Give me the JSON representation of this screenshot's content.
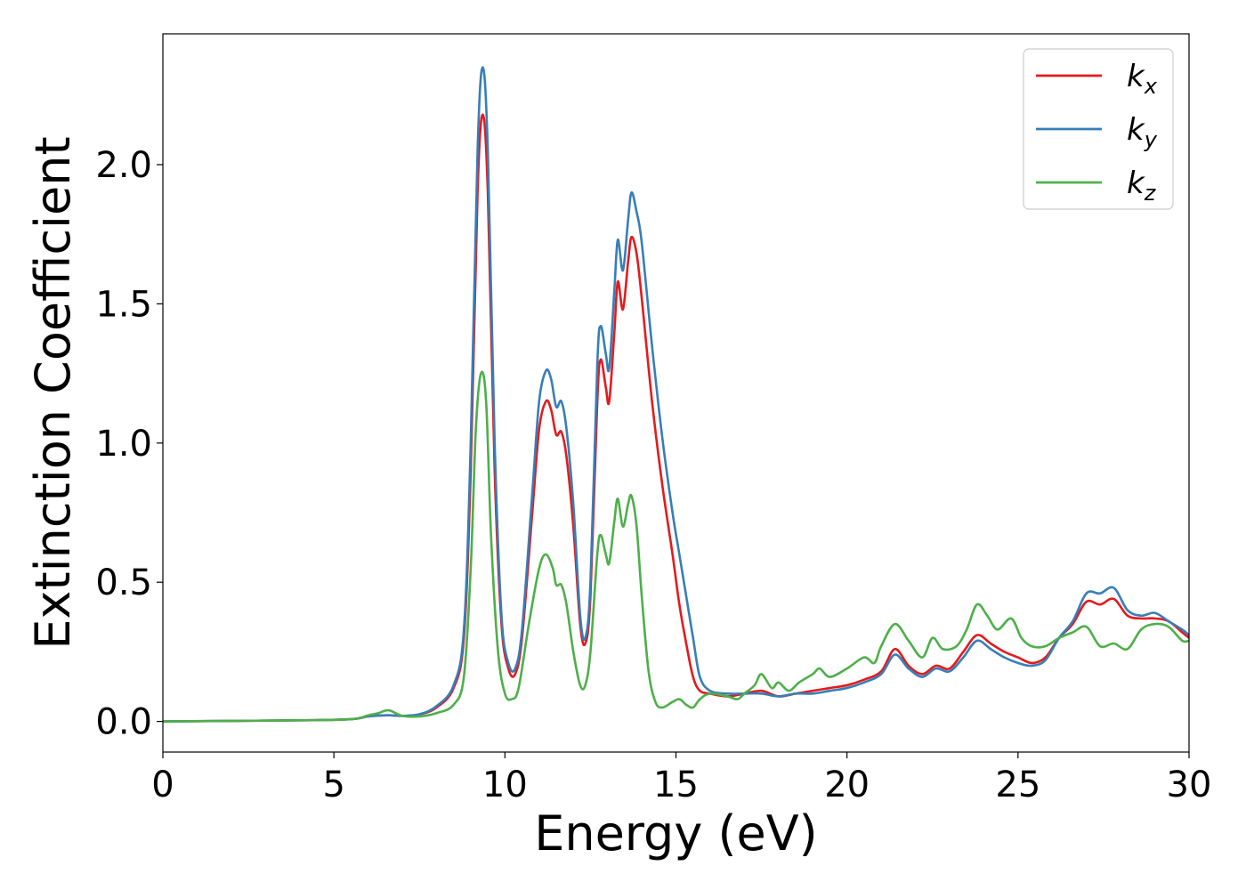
{
  "chart_data": {
    "type": "line",
    "title": "",
    "xlabel": "Energy (eV)",
    "ylabel": "Extinction Coefficient",
    "xlim": [
      0,
      30
    ],
    "ylim": [
      -0.11,
      2.47
    ],
    "xticks": [
      0,
      5,
      10,
      15,
      20,
      25,
      30
    ],
    "xtick_labels": [
      "0",
      "5",
      "10",
      "15",
      "20",
      "25",
      "30"
    ],
    "yticks": [
      0.0,
      0.5,
      1.0,
      1.5,
      2.0
    ],
    "ytick_labels": [
      "0.0",
      "0.5",
      "1.0",
      "1.5",
      "2.0"
    ],
    "grid": false,
    "legend_position": "top-right",
    "series": [
      {
        "name": "k_x",
        "legend_main": "k",
        "legend_sub": "x",
        "color": "#e41a1c",
        "points": [
          [
            0,
            0
          ],
          [
            4,
            0.004
          ],
          [
            5.5,
            0.008
          ],
          [
            6,
            0.018
          ],
          [
            6.6,
            0.022
          ],
          [
            7,
            0.02
          ],
          [
            7.5,
            0.025
          ],
          [
            8,
            0.05
          ],
          [
            8.5,
            0.12
          ],
          [
            8.8,
            0.3
          ],
          [
            9.0,
            0.9
          ],
          [
            9.2,
            1.9
          ],
          [
            9.35,
            2.18
          ],
          [
            9.5,
            1.9
          ],
          [
            9.7,
            0.9
          ],
          [
            9.9,
            0.35
          ],
          [
            10.1,
            0.19
          ],
          [
            10.3,
            0.17
          ],
          [
            10.5,
            0.3
          ],
          [
            10.8,
            0.75
          ],
          [
            11.0,
            1.05
          ],
          [
            11.2,
            1.15
          ],
          [
            11.35,
            1.12
          ],
          [
            11.5,
            1.03
          ],
          [
            11.65,
            1.04
          ],
          [
            11.8,
            0.95
          ],
          [
            12.0,
            0.7
          ],
          [
            12.2,
            0.35
          ],
          [
            12.35,
            0.28
          ],
          [
            12.5,
            0.45
          ],
          [
            12.7,
            1.15
          ],
          [
            12.8,
            1.3
          ],
          [
            12.95,
            1.2
          ],
          [
            13.05,
            1.15
          ],
          [
            13.2,
            1.4
          ],
          [
            13.3,
            1.58
          ],
          [
            13.45,
            1.48
          ],
          [
            13.6,
            1.65
          ],
          [
            13.7,
            1.74
          ],
          [
            13.85,
            1.68
          ],
          [
            14.0,
            1.52
          ],
          [
            14.3,
            1.15
          ],
          [
            14.6,
            0.85
          ],
          [
            14.9,
            0.6
          ],
          [
            15.1,
            0.42
          ],
          [
            15.3,
            0.28
          ],
          [
            15.5,
            0.16
          ],
          [
            15.7,
            0.11
          ],
          [
            16.0,
            0.1
          ],
          [
            16.5,
            0.09
          ],
          [
            17.0,
            0.1
          ],
          [
            17.5,
            0.11
          ],
          [
            18.0,
            0.09
          ],
          [
            18.5,
            0.1
          ],
          [
            19.0,
            0.11
          ],
          [
            19.5,
            0.12
          ],
          [
            20.0,
            0.13
          ],
          [
            20.5,
            0.15
          ],
          [
            21.0,
            0.18
          ],
          [
            21.4,
            0.26
          ],
          [
            21.8,
            0.2
          ],
          [
            22.2,
            0.17
          ],
          [
            22.6,
            0.2
          ],
          [
            23.0,
            0.19
          ],
          [
            23.4,
            0.25
          ],
          [
            23.8,
            0.31
          ],
          [
            24.2,
            0.28
          ],
          [
            24.6,
            0.25
          ],
          [
            25.0,
            0.23
          ],
          [
            25.4,
            0.21
          ],
          [
            25.8,
            0.23
          ],
          [
            26.2,
            0.3
          ],
          [
            26.6,
            0.35
          ],
          [
            27.0,
            0.43
          ],
          [
            27.4,
            0.42
          ],
          [
            27.8,
            0.44
          ],
          [
            28.2,
            0.38
          ],
          [
            28.6,
            0.37
          ],
          [
            29.0,
            0.37
          ],
          [
            29.4,
            0.36
          ],
          [
            29.8,
            0.32
          ],
          [
            30,
            0.3
          ]
        ]
      },
      {
        "name": "k_y",
        "legend_main": "k",
        "legend_sub": "y",
        "color": "#377eb8",
        "points": [
          [
            0,
            0
          ],
          [
            4,
            0.004
          ],
          [
            5.5,
            0.008
          ],
          [
            6,
            0.018
          ],
          [
            6.6,
            0.022
          ],
          [
            7,
            0.02
          ],
          [
            7.5,
            0.026
          ],
          [
            8,
            0.055
          ],
          [
            8.5,
            0.13
          ],
          [
            8.8,
            0.33
          ],
          [
            9.0,
            1.0
          ],
          [
            9.2,
            2.05
          ],
          [
            9.35,
            2.35
          ],
          [
            9.5,
            2.05
          ],
          [
            9.7,
            1.0
          ],
          [
            9.9,
            0.38
          ],
          [
            10.1,
            0.21
          ],
          [
            10.3,
            0.19
          ],
          [
            10.5,
            0.33
          ],
          [
            10.8,
            0.82
          ],
          [
            11.0,
            1.15
          ],
          [
            11.2,
            1.26
          ],
          [
            11.35,
            1.23
          ],
          [
            11.5,
            1.13
          ],
          [
            11.65,
            1.15
          ],
          [
            11.8,
            1.05
          ],
          [
            12.0,
            0.78
          ],
          [
            12.2,
            0.38
          ],
          [
            12.35,
            0.3
          ],
          [
            12.5,
            0.5
          ],
          [
            12.7,
            1.28
          ],
          [
            12.8,
            1.42
          ],
          [
            12.95,
            1.32
          ],
          [
            13.05,
            1.27
          ],
          [
            13.2,
            1.55
          ],
          [
            13.3,
            1.73
          ],
          [
            13.45,
            1.62
          ],
          [
            13.6,
            1.8
          ],
          [
            13.7,
            1.9
          ],
          [
            13.85,
            1.83
          ],
          [
            14.0,
            1.72
          ],
          [
            14.3,
            1.35
          ],
          [
            14.6,
            1.02
          ],
          [
            14.9,
            0.75
          ],
          [
            15.1,
            0.6
          ],
          [
            15.3,
            0.45
          ],
          [
            15.5,
            0.3
          ],
          [
            15.7,
            0.16
          ],
          [
            16.0,
            0.11
          ],
          [
            16.5,
            0.1
          ],
          [
            17.0,
            0.1
          ],
          [
            17.5,
            0.1
          ],
          [
            18.0,
            0.09
          ],
          [
            18.5,
            0.1
          ],
          [
            19.0,
            0.1
          ],
          [
            19.5,
            0.11
          ],
          [
            20.0,
            0.12
          ],
          [
            20.5,
            0.14
          ],
          [
            21.0,
            0.17
          ],
          [
            21.4,
            0.24
          ],
          [
            21.8,
            0.19
          ],
          [
            22.2,
            0.16
          ],
          [
            22.6,
            0.19
          ],
          [
            23.0,
            0.18
          ],
          [
            23.4,
            0.23
          ],
          [
            23.8,
            0.29
          ],
          [
            24.2,
            0.26
          ],
          [
            24.6,
            0.23
          ],
          [
            25.0,
            0.21
          ],
          [
            25.4,
            0.2
          ],
          [
            25.8,
            0.22
          ],
          [
            26.2,
            0.3
          ],
          [
            26.6,
            0.36
          ],
          [
            27.0,
            0.46
          ],
          [
            27.4,
            0.46
          ],
          [
            27.8,
            0.48
          ],
          [
            28.2,
            0.4
          ],
          [
            28.6,
            0.38
          ],
          [
            29.0,
            0.39
          ],
          [
            29.4,
            0.36
          ],
          [
            29.8,
            0.33
          ],
          [
            30,
            0.31
          ]
        ]
      },
      {
        "name": "k_z",
        "legend_main": "k",
        "legend_sub": "z",
        "color": "#4daf4a",
        "points": [
          [
            0,
            0
          ],
          [
            4,
            0.004
          ],
          [
            5.5,
            0.008
          ],
          [
            6,
            0.022
          ],
          [
            6.3,
            0.03
          ],
          [
            6.6,
            0.04
          ],
          [
            7,
            0.02
          ],
          [
            7.5,
            0.018
          ],
          [
            8,
            0.03
          ],
          [
            8.5,
            0.06
          ],
          [
            8.8,
            0.16
          ],
          [
            9.0,
            0.55
          ],
          [
            9.15,
            1.05
          ],
          [
            9.3,
            1.25
          ],
          [
            9.45,
            1.15
          ],
          [
            9.6,
            0.65
          ],
          [
            9.8,
            0.25
          ],
          [
            10.0,
            0.1
          ],
          [
            10.2,
            0.08
          ],
          [
            10.4,
            0.12
          ],
          [
            10.7,
            0.35
          ],
          [
            11.0,
            0.55
          ],
          [
            11.2,
            0.6
          ],
          [
            11.4,
            0.55
          ],
          [
            11.5,
            0.49
          ],
          [
            11.65,
            0.49
          ],
          [
            11.8,
            0.42
          ],
          [
            12.0,
            0.25
          ],
          [
            12.2,
            0.13
          ],
          [
            12.35,
            0.13
          ],
          [
            12.5,
            0.25
          ],
          [
            12.7,
            0.6
          ],
          [
            12.8,
            0.67
          ],
          [
            12.95,
            0.6
          ],
          [
            13.05,
            0.57
          ],
          [
            13.2,
            0.72
          ],
          [
            13.3,
            0.8
          ],
          [
            13.45,
            0.7
          ],
          [
            13.6,
            0.78
          ],
          [
            13.7,
            0.81
          ],
          [
            13.85,
            0.7
          ],
          [
            14.0,
            0.45
          ],
          [
            14.2,
            0.18
          ],
          [
            14.4,
            0.07
          ],
          [
            14.6,
            0.05
          ],
          [
            14.9,
            0.07
          ],
          [
            15.1,
            0.08
          ],
          [
            15.3,
            0.06
          ],
          [
            15.5,
            0.05
          ],
          [
            15.7,
            0.08
          ],
          [
            16.0,
            0.1
          ],
          [
            16.5,
            0.09
          ],
          [
            16.8,
            0.08
          ],
          [
            17.0,
            0.1
          ],
          [
            17.3,
            0.13
          ],
          [
            17.5,
            0.17
          ],
          [
            17.8,
            0.12
          ],
          [
            18.0,
            0.14
          ],
          [
            18.3,
            0.11
          ],
          [
            18.6,
            0.14
          ],
          [
            19.0,
            0.17
          ],
          [
            19.2,
            0.19
          ],
          [
            19.5,
            0.16
          ],
          [
            20.0,
            0.19
          ],
          [
            20.5,
            0.23
          ],
          [
            20.8,
            0.21
          ],
          [
            21.0,
            0.27
          ],
          [
            21.4,
            0.35
          ],
          [
            21.8,
            0.29
          ],
          [
            22.2,
            0.23
          ],
          [
            22.5,
            0.3
          ],
          [
            22.8,
            0.26
          ],
          [
            23.2,
            0.27
          ],
          [
            23.5,
            0.33
          ],
          [
            23.8,
            0.42
          ],
          [
            24.1,
            0.38
          ],
          [
            24.4,
            0.33
          ],
          [
            24.8,
            0.37
          ],
          [
            25.1,
            0.3
          ],
          [
            25.4,
            0.27
          ],
          [
            25.8,
            0.27
          ],
          [
            26.2,
            0.3
          ],
          [
            26.6,
            0.32
          ],
          [
            27.0,
            0.34
          ],
          [
            27.4,
            0.27
          ],
          [
            27.8,
            0.28
          ],
          [
            28.2,
            0.26
          ],
          [
            28.6,
            0.33
          ],
          [
            29.0,
            0.35
          ],
          [
            29.4,
            0.34
          ],
          [
            29.8,
            0.29
          ],
          [
            30,
            0.29
          ]
        ]
      }
    ]
  }
}
